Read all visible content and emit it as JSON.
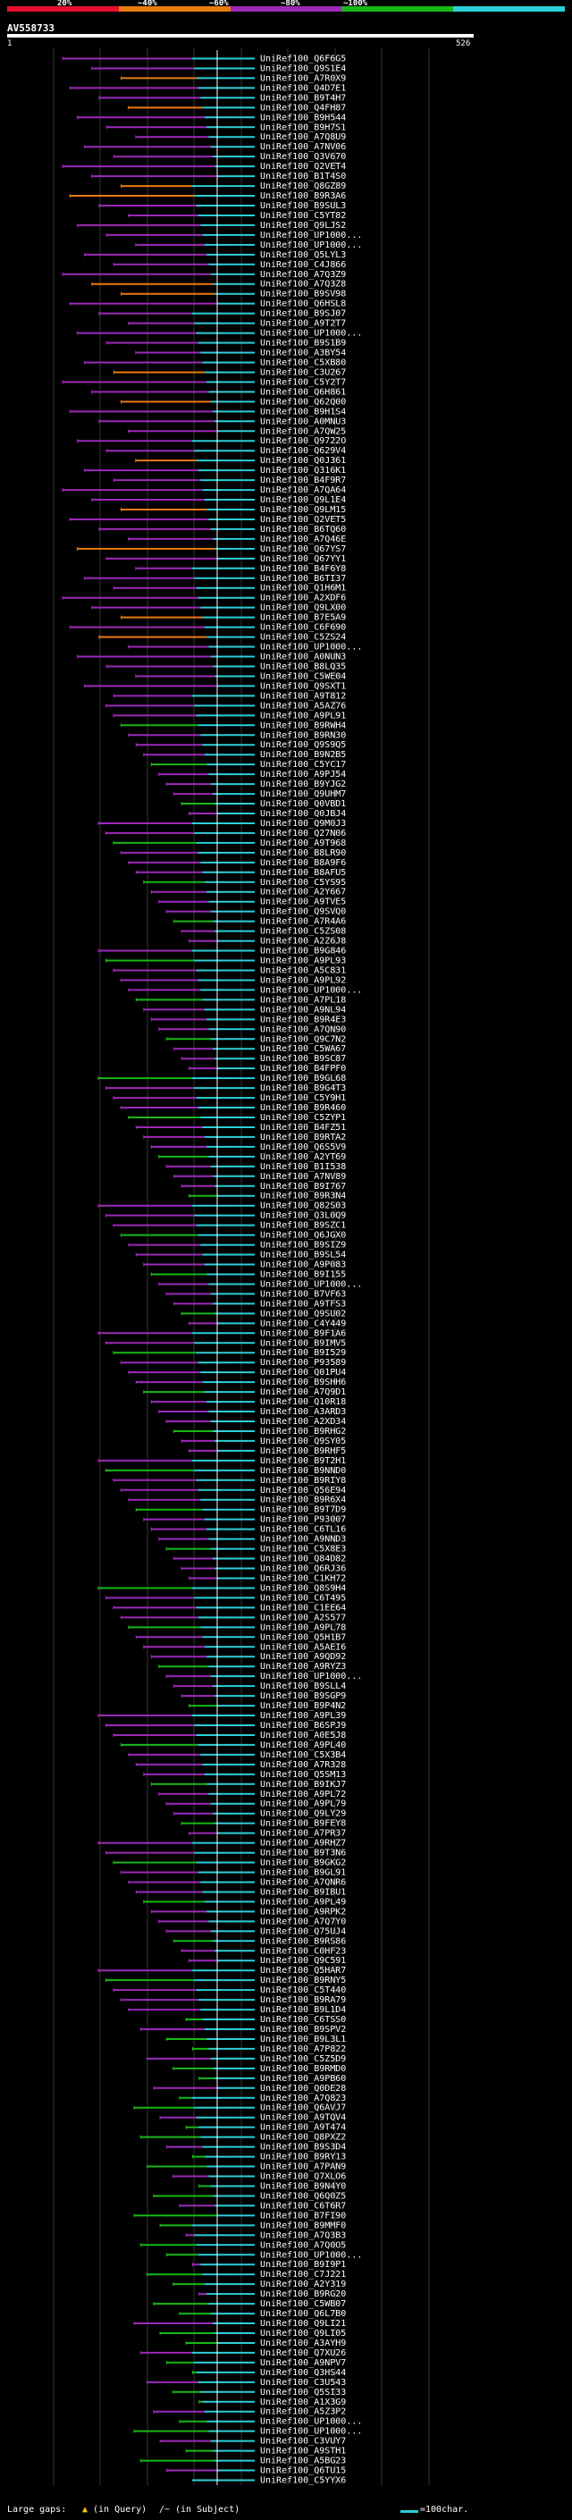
{
  "query": {
    "id": "AV558733",
    "start": "1",
    "end": "526"
  },
  "legend": {
    "labels": [
      "20%",
      "~40%",
      "~60%",
      "~80%",
      "~100%"
    ],
    "colors": [
      "#e8102e",
      "#e87a10",
      "#9c2ab8",
      "#18b818",
      "#2cd0d8"
    ]
  },
  "footer": {
    "gaps_label": "Large gaps:",
    "query_gap": "(in Query)",
    "subject_gap": "(in Subject)",
    "scale_label": "=100char."
  },
  "chart_data": {
    "type": "blast-hits",
    "query_length": 526,
    "hits": [
      "UniRef100_Q6F6G5",
      "UniRef100_Q9S1E4",
      "UniRef100_A7R0X9",
      "UniRef100_Q4D7E1",
      "UniRef100_B9T4H7",
      "UniRef100_Q4FH87",
      "UniRef100_B9H544",
      "UniRef100_B9H7S1",
      "UniRef100_A7Q8U9",
      "UniRef100_A7NV06",
      "UniRef100_Q3V670",
      "UniRef100_Q2VET4",
      "UniRef100_B1T4S0",
      "UniRef100_Q8GZ89",
      "UniRef100_B9R3A6",
      "UniRef100_B9SUL3",
      "UniRef100_C5YT82",
      "UniRef100_Q9LJS2",
      "UniRef100_UP1000...",
      "UniRef100_UP1000...",
      "UniRef100_Q5LYL3",
      "UniRef100_C4J866",
      "UniRef100_A7Q3Z9",
      "UniRef100_A7Q3Z8",
      "UniRef100_B9SV98",
      "UniRef100_Q6HSL8",
      "UniRef100_B9SJ07",
      "UniRef100_A9T2T7",
      "UniRef100_UP1000...",
      "UniRef100_B9S1B9",
      "UniRef100_A3BY54",
      "UniRef100_C5XB80",
      "UniRef100_C3U267",
      "UniRef100_C5Y2T7",
      "UniRef100_Q6H861",
      "UniRef100_Q62Q00",
      "UniRef100_B9H1S4",
      "UniRef100_A0MNU3",
      "UniRef100_A7QW25",
      "UniRef100_Q9722O",
      "UniRef100_Q629V4",
      "UniRef100_Q0J361",
      "UniRef100_Q316K1",
      "UniRef100_B4F9R7",
      "UniRef100_A7QA64",
      "UniRef100_Q9L1E4",
      "UniRef100_Q9LM15",
      "UniRef100_Q2VET5",
      "UniRef100_B6TQ60",
      "UniRef100_A7Q46E",
      "UniRef100_Q67YS7",
      "UniRef100_Q67YY1",
      "UniRef100_B4F6Y8",
      "UniRef100_B6TI37",
      "UniRef100_Q1H6M1",
      "UniRef100_A2XDF6",
      "UniRef100_Q9LX00",
      "UniRef100_B7E5A9",
      "UniRef100_C6F690",
      "UniRef100_C5ZS24",
      "UniRef100_UP1000...",
      "UniRef100_A0NUN3",
      "UniRef100_B8LQ35",
      "UniRef100_C5WE04",
      "UniRef100_Q9SXT1",
      "UniRef100_A9T812",
      "UniRef100_A5AZ76",
      "UniRef100_A9PL91",
      "UniRef100_B9RWH4",
      "UniRef100_B9RN30",
      "UniRef100_Q9S9Q5",
      "UniRef100_B9N2B5",
      "UniRef100_C5YC17",
      "UniRef100_A9PJ54",
      "UniRef100_B9YJG2",
      "UniRef100_Q9UHM7",
      "UniRef100_Q0VBD1",
      "UniRef100_Q0JBJ4",
      "UniRef100_Q9M0J3",
      "UniRef100_Q27N06",
      "UniRef100_A9T968",
      "UniRef100_B8LR90",
      "UniRef100_B8A9F6",
      "UniRef100_B8AFU5",
      "UniRef100_C5YS95",
      "UniRef100_A2Y667",
      "UniRef100_A9TVE5",
      "UniRef100_Q9SVQ0",
      "UniRef100_A7R4A6",
      "UniRef100_C5ZS08",
      "UniRef100_A2Z6J8",
      "UniRef100_B9G846",
      "UniRef100_A9PL93",
      "UniRef100_A5C831",
      "UniRef100_A9PL92",
      "UniRef100_UP1000...",
      "UniRef100_A7PL18",
      "UniRef100_A9NL94",
      "UniRef100_B9R4E3",
      "UniRef100_A7QN90",
      "UniRef100_Q9C7N2",
      "UniRef100_C5WA67",
      "UniRef100_B9SC87",
      "UniRef100_B4FPF0",
      "UniRef100_B9GL68",
      "UniRef100_B9G4T3",
      "UniRef100_C5Y9H1",
      "UniRef100_B9R460",
      "UniRef100_C5ZYP1",
      "UniRef100_B4FZ51",
      "UniRef100_B9RTA2",
      "UniRef100_Q6S5V9",
      "UniRef100_A2YT69",
      "UniRef100_B1I538",
      "UniRef100_A7NV89",
      "UniRef100_B9I767",
      "UniRef100_B9R3N4",
      "UniRef100_Q82S03",
      "UniRef100_Q3L0Q9",
      "UniRef100_B9SZC1",
      "UniRef100_Q6JGX0",
      "UniRef100_B9SIZ9",
      "UniRef100_B9SL54",
      "UniRef100_A9P083",
      "UniRef100_B9I155",
      "UniRef100_UP1000...",
      "UniRef100_B7VF63",
      "UniRef100_A9TFS3",
      "UniRef100_Q9SU02",
      "UniRef100_C4Y449",
      "UniRef100_B9F1A6",
      "UniRef100_B9IMV5",
      "UniRef100_B9I529",
      "UniRef100_P93589",
      "UniRef100_Q01PU4",
      "UniRef100_B9SHH6",
      "UniRef100_A7Q9D1",
      "UniRef100_Q10R18",
      "UniRef100_A3ARD3",
      "UniRef100_A2XD34",
      "UniRef100_B9RHG2",
      "UniRef100_Q9SY05",
      "UniRef100_B9RHF5",
      "UniRef100_B9T2H1",
      "UniRef100_B9NND0",
      "UniRef100_B9RIY8",
      "UniRef100_Q56E94",
      "UniRef100_B9R6X4",
      "UniRef100_B9T7D9",
      "UniRef100_P93007",
      "UniRef100_C6TL16",
      "UniRef100_A9NND3",
      "UniRef100_C5X8E3",
      "UniRef100_Q84D82",
      "UniRef100_Q6RJ36",
      "UniRef100_C1KH72",
      "UniRef100_Q8S9H4",
      "UniRef100_C6T495",
      "UniRef100_C1EE64",
      "UniRef100_A2S577",
      "UniRef100_A9PL78",
      "UniRef100_Q5H1B7",
      "UniRef100_A5AEI6",
      "UniRef100_A9QD92",
      "UniRef100_A9RYZ3",
      "UniRef100_UP1000...",
      "UniRef100_B9SLL4",
      "UniRef100_B9SGP9",
      "UniRef100_B9P4N2",
      "UniRef100_A9PL39",
      "UniRef100_B6SPJ9",
      "UniRef100_A0E5J8",
      "UniRef100_A9PL40",
      "UniRef100_C5X3B4",
      "UniRef100_A7R328",
      "UniRef100_Q5SM13",
      "UniRef100_B9IKJ7",
      "UniRef100_A9PL72",
      "UniRef100_A9PL79",
      "UniRef100_Q9LY29",
      "UniRef100_B9FEY8",
      "UniRef100_A7PR37",
      "UniRef100_A9RHZ7",
      "UniRef100_B9T3N6",
      "UniRef100_B9GKG2",
      "UniRef100_B9GL91",
      "UniRef100_A7QNR6",
      "UniRef100_B9IBU1",
      "UniRef100_A9PL49",
      "UniRef100_A9RPK2",
      "UniRef100_A7Q7Y0",
      "UniRef100_Q75UJ4",
      "UniRef100_B9RS86",
      "UniRef100_C0HF23",
      "UniRef100_Q9C591",
      "UniRef100_Q5HAR7",
      "UniRef100_B9RNY5",
      "UniRef100_C5T440",
      "UniRef100_B9RA79",
      "UniRef100_B9L1D4",
      "UniRef100_C6TSS0",
      "UniRef100_B9SPV2",
      "UniRef100_B9L3L1",
      "UniRef100_A7P822",
      "UniRef100_C5Z5D9",
      "UniRef100_B9RMD0",
      "UniRef100_A9PB60",
      "UniRef100_Q0DE28",
      "UniRef100_A7Q823",
      "UniRef100_Q6AVJ7",
      "UniRef100_A9TQV4",
      "UniRef100_A9T474",
      "UniRef100_Q8PXZ2",
      "UniRef100_B9S3D4",
      "UniRef100_B9RY13",
      "UniRef100_A7PAN9",
      "UniRef100_Q7XLO6",
      "UniRef100_B9N4Y0",
      "UniRef100_Q6Q0Z5",
      "UniRef100_C6T6R7",
      "UniRef100_B7FI90",
      "UniRef100_B9MMF0",
      "UniRef100_A7Q3B3",
      "UniRef100_A7Q0O5",
      "UniRef100_UP1000...",
      "UniRef100_B9I9P1",
      "UniRef100_C7J221",
      "UniRef100_A2Y319",
      "UniRef100_B9RG20",
      "UniRef100_C5WB07",
      "UniRef100_Q6L7B0",
      "UniRef100_Q9LI21",
      "UniRef100_Q9LI05",
      "UniRef100_A3AYH9",
      "UniRef100_Q7XU26",
      "UniRef100_A9NPV7",
      "UniRef100_Q3HS44",
      "UniRef100_C3U543",
      "UniRef100_Q5SI33",
      "UniRef100_A1X3G9",
      "UniRef100_A5Z3P2",
      "UniRef100_UP1000...",
      "UniRef100_UP1000...",
      "UniRef100_C3VUY7",
      "UniRef100_A9STH1",
      "UniRef100_A5BG23",
      "UniRef100_Q6TU15",
      "UniRef100_C5YYX6"
    ]
  }
}
